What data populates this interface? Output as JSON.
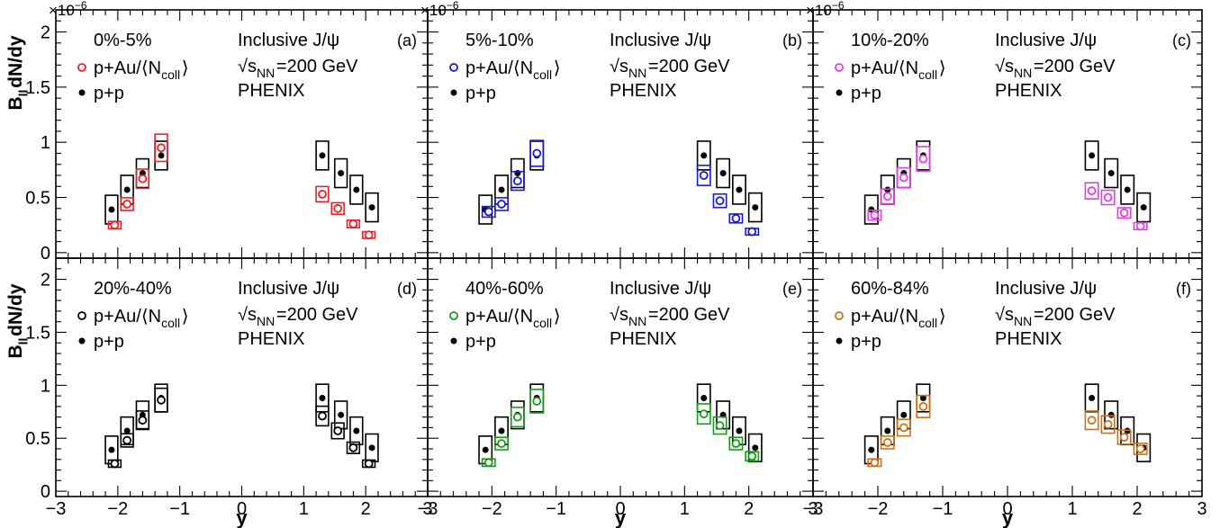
{
  "figure": {
    "ylabel": "B_{ll}dN/dy",
    "xlabel": "y",
    "exponent_label": "×10^{−6}",
    "common_text": {
      "process": "Inclusive J/ψ",
      "energy": "√s_{NN}=200 GeV",
      "experiment": "PHENIX",
      "legend_pAu": "p+Au/⟨N_{coll}⟩",
      "legend_pp": "p+p"
    },
    "x_ticks": [
      "−3",
      "−2",
      "−1",
      "0",
      "1",
      "2",
      "3"
    ],
    "y_ticks": [
      "0",
      "0.5",
      "1",
      "1.5",
      "2"
    ],
    "colors": {
      "pp": "#000000",
      "panel_a": "#e8202a",
      "panel_b": "#1a1ad6",
      "panel_c": "#e040e0",
      "panel_d": "#000000",
      "panel_e": "#1a9a1a",
      "panel_f": "#c8731a"
    }
  },
  "chart_data": [
    {
      "type": "scatter",
      "panel": "(a)",
      "centrality": "0%-5%",
      "color": "#e8202a",
      "xlim": [
        -3,
        3
      ],
      "ylim": [
        0,
        2.2
      ],
      "y_scale_factor": 1e-06,
      "series": [
        {
          "name": "p+Au/⟨N_{coll}⟩",
          "marker": "open-circle",
          "x": [
            -2.05,
            -1.85,
            -1.6,
            -1.3,
            1.3,
            1.55,
            1.8,
            2.05
          ],
          "y": [
            0.25,
            0.44,
            0.67,
            0.95,
            0.53,
            0.4,
            0.26,
            0.16
          ]
        },
        {
          "name": "p+p",
          "marker": "filled-circle",
          "x": [
            -2.1,
            -1.85,
            -1.6,
            -1.3,
            1.3,
            1.6,
            1.85,
            2.1
          ],
          "y": [
            0.39,
            0.57,
            0.72,
            0.88,
            0.88,
            0.72,
            0.57,
            0.41
          ]
        }
      ]
    },
    {
      "type": "scatter",
      "panel": "(b)",
      "centrality": "5%-10%",
      "color": "#1a1ad6",
      "xlim": [
        -3,
        3
      ],
      "ylim": [
        0,
        2.2
      ],
      "y_scale_factor": 1e-06,
      "series": [
        {
          "name": "p+Au/⟨N_{coll}⟩",
          "marker": "open-circle",
          "x": [
            -2.05,
            -1.85,
            -1.6,
            -1.3,
            1.3,
            1.55,
            1.8,
            2.05
          ],
          "y": [
            0.37,
            0.44,
            0.65,
            0.9,
            0.7,
            0.47,
            0.31,
            0.19
          ]
        },
        {
          "name": "p+p",
          "marker": "filled-circle",
          "x": [
            -2.1,
            -1.85,
            -1.6,
            -1.3,
            1.3,
            1.6,
            1.85,
            2.1
          ],
          "y": [
            0.39,
            0.57,
            0.72,
            0.88,
            0.88,
            0.72,
            0.57,
            0.41
          ]
        }
      ]
    },
    {
      "type": "scatter",
      "panel": "(c)",
      "centrality": "10%-20%",
      "color": "#e040e0",
      "xlim": [
        -3,
        3
      ],
      "ylim": [
        0,
        2.2
      ],
      "y_scale_factor": 1e-06,
      "series": [
        {
          "name": "p+Au/⟨N_{coll}⟩",
          "marker": "open-circle",
          "x": [
            -2.05,
            -1.85,
            -1.6,
            -1.3,
            1.3,
            1.55,
            1.8,
            2.05
          ],
          "y": [
            0.34,
            0.51,
            0.68,
            0.85,
            0.56,
            0.5,
            0.36,
            0.24
          ]
        },
        {
          "name": "p+p",
          "marker": "filled-circle",
          "x": [
            -2.1,
            -1.85,
            -1.6,
            -1.3,
            1.3,
            1.6,
            1.85,
            2.1
          ],
          "y": [
            0.39,
            0.57,
            0.72,
            0.88,
            0.88,
            0.72,
            0.57,
            0.41
          ]
        }
      ]
    },
    {
      "type": "scatter",
      "panel": "(d)",
      "centrality": "20%-40%",
      "color": "#000000",
      "xlim": [
        -3,
        3
      ],
      "ylim": [
        0,
        2.2
      ],
      "y_scale_factor": 1e-06,
      "series": [
        {
          "name": "p+Au/⟨N_{coll}⟩",
          "marker": "open-circle",
          "x": [
            -2.05,
            -1.85,
            -1.6,
            -1.3,
            1.3,
            1.55,
            1.8,
            2.05
          ],
          "y": [
            0.26,
            0.48,
            0.67,
            0.86,
            0.71,
            0.57,
            0.41,
            0.26
          ]
        },
        {
          "name": "p+p",
          "marker": "filled-circle",
          "x": [
            -2.1,
            -1.85,
            -1.6,
            -1.3,
            1.3,
            1.6,
            1.85,
            2.1
          ],
          "y": [
            0.39,
            0.57,
            0.72,
            0.88,
            0.88,
            0.72,
            0.57,
            0.41
          ]
        }
      ]
    },
    {
      "type": "scatter",
      "panel": "(e)",
      "centrality": "40%-60%",
      "color": "#1a9a1a",
      "xlim": [
        -3,
        3
      ],
      "ylim": [
        0,
        2.2
      ],
      "y_scale_factor": 1e-06,
      "series": [
        {
          "name": "p+Au/⟨N_{coll}⟩",
          "marker": "open-circle",
          "x": [
            -2.05,
            -1.85,
            -1.6,
            -1.3,
            1.3,
            1.55,
            1.8,
            2.05
          ],
          "y": [
            0.27,
            0.45,
            0.7,
            0.85,
            0.73,
            0.62,
            0.45,
            0.33
          ]
        },
        {
          "name": "p+p",
          "marker": "filled-circle",
          "x": [
            -2.1,
            -1.85,
            -1.6,
            -1.3,
            1.3,
            1.6,
            1.85,
            2.1
          ],
          "y": [
            0.39,
            0.57,
            0.72,
            0.88,
            0.88,
            0.72,
            0.57,
            0.41
          ]
        }
      ]
    },
    {
      "type": "scatter",
      "panel": "(f)",
      "centrality": "60%-84%",
      "color": "#c8731a",
      "xlim": [
        -3,
        3
      ],
      "ylim": [
        0,
        2.2
      ],
      "y_scale_factor": 1e-06,
      "series": [
        {
          "name": "p+Au/⟨N_{coll}⟩",
          "marker": "open-circle",
          "x": [
            -2.05,
            -1.85,
            -1.6,
            -1.3,
            1.3,
            1.55,
            1.8,
            2.05
          ],
          "y": [
            0.27,
            0.46,
            0.6,
            0.8,
            0.67,
            0.63,
            0.51,
            0.4
          ]
        },
        {
          "name": "p+p",
          "marker": "filled-circle",
          "x": [
            -2.1,
            -1.85,
            -1.6,
            -1.3,
            1.3,
            1.6,
            1.85,
            2.1
          ],
          "y": [
            0.39,
            0.57,
            0.72,
            0.88,
            0.88,
            0.72,
            0.57,
            0.41
          ]
        }
      ]
    }
  ]
}
